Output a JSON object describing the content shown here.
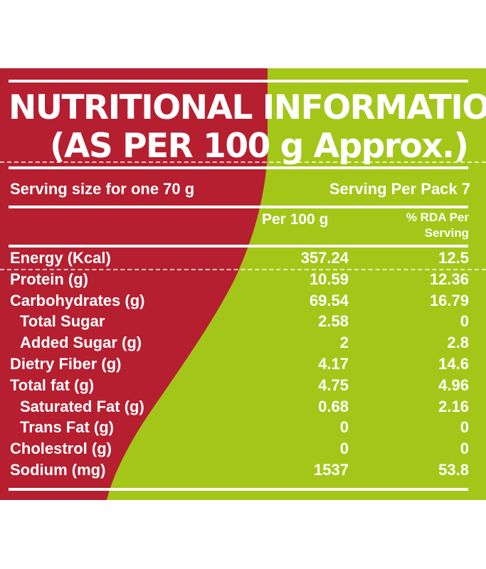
{
  "colors": {
    "red": "#b51f30",
    "green": "#a4c618",
    "text": "#ffffff"
  },
  "title": {
    "line1": "NUTRITIONAL INFORMATION",
    "line2": "(AS PER 100 g Approx.)"
  },
  "serving": {
    "size": "Serving size for one 70 g",
    "per_pack": "Serving Per Pack 7"
  },
  "columns": {
    "per100": "Per 100 g",
    "rda_line1": "% RDA Per",
    "rda_line2": "Serving"
  },
  "rows": [
    {
      "label": "Energy (Kcal)",
      "per100": "357.24",
      "rda": "12.5"
    },
    {
      "label": "Protein (g)",
      "per100": "10.59",
      "rda": "12.36"
    },
    {
      "label": "Carbohydrates (g)",
      "per100": "69.54",
      "rda": "16.79"
    },
    {
      "label": "Total Sugar",
      "per100": "2.58",
      "rda": "0"
    },
    {
      "label": "Added Sugar (g)",
      "per100": "2",
      "rda": "2.8"
    },
    {
      "label": "Dietry Fiber (g)",
      "per100": "4.17",
      "rda": "14.6"
    },
    {
      "label": "Total fat (g)",
      "per100": "4.75",
      "rda": "4.96"
    },
    {
      "label": "Saturated Fat (g)",
      "per100": "0.68",
      "rda": "2.16"
    },
    {
      "label": "Trans Fat (g)",
      "per100": "0",
      "rda": "0"
    },
    {
      "label": "Cholestrol (g)",
      "per100": "0",
      "rda": "0"
    },
    {
      "label": "Sodium (mg)",
      "per100": "1537",
      "rda": "53.8"
    }
  ]
}
